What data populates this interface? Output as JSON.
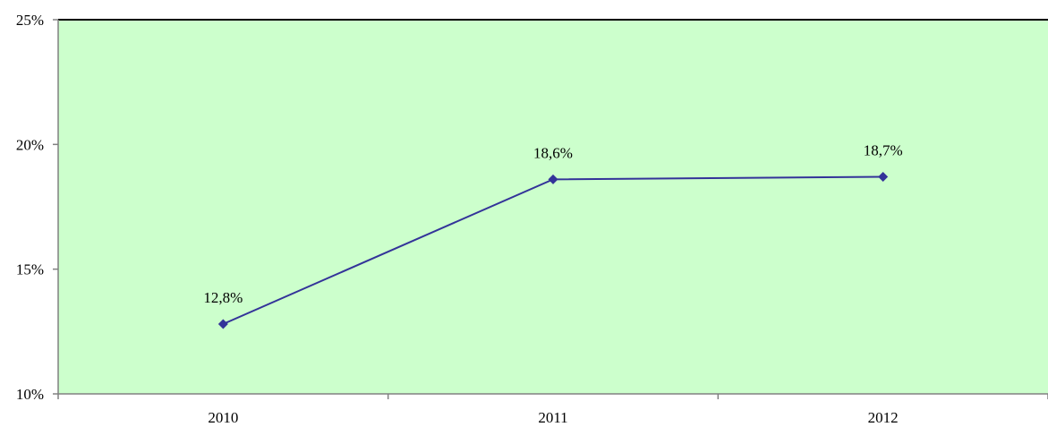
{
  "chart_data": {
    "type": "line",
    "title": "",
    "xlabel": "",
    "ylabel": "",
    "categories": [
      "2010",
      "2011",
      "2012"
    ],
    "series": [
      {
        "values": [
          12.8,
          18.6,
          18.7
        ]
      }
    ],
    "data_labels": [
      "12,8%",
      "18,6%",
      "18,7%"
    ],
    "ylim": [
      10,
      25
    ],
    "y_ticks": [
      10,
      15,
      20,
      25
    ],
    "y_tick_labels": [
      "10%",
      "15%",
      "20%",
      "25%"
    ],
    "grid": false,
    "legend": "none",
    "colors": {
      "plot_background": "#ccffcc",
      "series_line": "#333399",
      "axis": "#808080",
      "plot_border_top": "#000000"
    }
  }
}
